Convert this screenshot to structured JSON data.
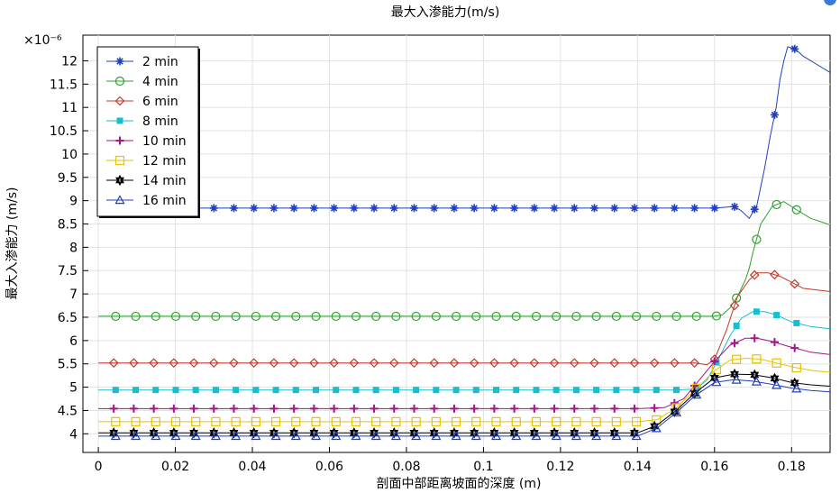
{
  "chart_data": {
    "type": "line",
    "title": "最大入渗能力(m/s)",
    "xlabel": "剖面中部距离坡面的深度 (m)",
    "ylabel": "最大入渗能力 (m/s)",
    "y_multiplier": "×10⁻⁶",
    "xlim": [
      -0.004,
      0.19
    ],
    "ylim": [
      3.6,
      12.55
    ],
    "x_ticks": [
      0,
      0.02,
      0.04,
      0.06,
      0.08,
      0.1,
      0.12,
      0.14,
      0.16,
      0.18
    ],
    "x_tick_labels": [
      "0",
      "0.02",
      "0.04",
      "0.06",
      "0.08",
      "0.1",
      "0.12",
      "0.14",
      "0.16",
      "0.18"
    ],
    "y_ticks": [
      4,
      4.5,
      5,
      5.5,
      6,
      6.5,
      7,
      7.5,
      8,
      8.5,
      9,
      9.5,
      10,
      10.5,
      11,
      11.5,
      12
    ],
    "y_tick_labels": [
      "4",
      "4.5",
      "5",
      "5.5",
      "6",
      "6.5",
      "7",
      "7.5",
      "8",
      "8.5",
      "9",
      "9.5",
      "10",
      "10.5",
      "11",
      "11.5",
      "12"
    ],
    "grid": true,
    "legend_position": "top-left",
    "series": [
      {
        "name": "2 min",
        "color": "#1f3fbf",
        "marker": "star",
        "x": [
          0,
          0.01,
          0.02,
          0.03,
          0.04,
          0.05,
          0.06,
          0.07,
          0.08,
          0.09,
          0.1,
          0.11,
          0.12,
          0.13,
          0.14,
          0.15,
          0.155,
          0.16,
          0.163,
          0.165,
          0.167,
          0.169,
          0.171,
          0.173,
          0.1745,
          0.176,
          0.177,
          0.178,
          0.179,
          0.181,
          0.183,
          0.186,
          0.19
        ],
        "y": [
          8.84,
          8.84,
          8.84,
          8.84,
          8.84,
          8.84,
          8.84,
          8.84,
          8.84,
          8.84,
          8.84,
          8.84,
          8.84,
          8.84,
          8.84,
          8.84,
          8.84,
          8.84,
          8.86,
          8.88,
          8.78,
          8.62,
          8.9,
          9.7,
          10.4,
          11.0,
          11.6,
          12.0,
          12.3,
          12.25,
          12.1,
          11.95,
          11.75
        ]
      },
      {
        "name": "4 min",
        "color": "#2ca02c",
        "marker": "circle",
        "x": [
          0,
          0.02,
          0.04,
          0.06,
          0.08,
          0.1,
          0.12,
          0.14,
          0.155,
          0.16,
          0.162,
          0.164,
          0.166,
          0.168,
          0.169,
          0.17,
          0.172,
          0.175,
          0.178,
          0.181,
          0.185,
          0.19
        ],
        "y": [
          6.52,
          6.52,
          6.52,
          6.52,
          6.52,
          6.52,
          6.52,
          6.52,
          6.52,
          6.52,
          6.55,
          6.7,
          6.95,
          7.3,
          7.55,
          7.9,
          8.5,
          8.88,
          8.98,
          8.82,
          8.62,
          8.48
        ]
      },
      {
        "name": "6 min",
        "color": "#c0392b",
        "marker": "diamond",
        "x": [
          0,
          0.02,
          0.04,
          0.06,
          0.08,
          0.1,
          0.12,
          0.14,
          0.155,
          0.158,
          0.16,
          0.163,
          0.166,
          0.169,
          0.171,
          0.174,
          0.177,
          0.18,
          0.183,
          0.19
        ],
        "y": [
          5.52,
          5.52,
          5.52,
          5.52,
          5.52,
          5.52,
          5.52,
          5.52,
          5.52,
          5.48,
          5.6,
          6.2,
          6.95,
          7.3,
          7.45,
          7.45,
          7.38,
          7.25,
          7.12,
          7.05
        ]
      },
      {
        "name": "8 min",
        "color": "#17becf",
        "marker": "square",
        "x": [
          0,
          0.02,
          0.04,
          0.06,
          0.08,
          0.1,
          0.12,
          0.14,
          0.15,
          0.155,
          0.158,
          0.161,
          0.164,
          0.167,
          0.17,
          0.173,
          0.176,
          0.18,
          0.185,
          0.19
        ],
        "y": [
          4.94,
          4.94,
          4.94,
          4.94,
          4.94,
          4.94,
          4.94,
          4.94,
          4.94,
          4.96,
          5.15,
          5.6,
          6.1,
          6.48,
          6.62,
          6.62,
          6.55,
          6.4,
          6.3,
          6.25
        ]
      },
      {
        "name": "10 min",
        "color": "#a0148c",
        "marker": "plus",
        "x": [
          0,
          0.02,
          0.04,
          0.06,
          0.08,
          0.1,
          0.12,
          0.14,
          0.147,
          0.152,
          0.156,
          0.16,
          0.164,
          0.168,
          0.171,
          0.175,
          0.179,
          0.185,
          0.19
        ],
        "y": [
          4.54,
          4.54,
          4.54,
          4.54,
          4.54,
          4.54,
          4.54,
          4.54,
          4.56,
          4.75,
          5.15,
          5.55,
          5.9,
          6.05,
          6.05,
          5.98,
          5.88,
          5.75,
          5.7
        ]
      },
      {
        "name": "12 min",
        "color": "#e6c200",
        "marker": "open-square",
        "x": [
          0,
          0.02,
          0.04,
          0.06,
          0.08,
          0.1,
          0.12,
          0.14,
          0.145,
          0.15,
          0.155,
          0.16,
          0.164,
          0.168,
          0.172,
          0.176,
          0.181,
          0.186,
          0.19
        ],
        "y": [
          4.26,
          4.26,
          4.26,
          4.26,
          4.26,
          4.26,
          4.26,
          4.26,
          4.3,
          4.55,
          4.95,
          5.35,
          5.58,
          5.62,
          5.6,
          5.52,
          5.42,
          5.35,
          5.32
        ]
      },
      {
        "name": "14 min",
        "color": "#000000",
        "marker": "hexagram",
        "x": [
          0,
          0.02,
          0.04,
          0.06,
          0.08,
          0.1,
          0.12,
          0.14,
          0.145,
          0.15,
          0.155,
          0.16,
          0.165,
          0.17,
          0.175,
          0.18,
          0.185,
          0.19
        ],
        "y": [
          4.02,
          4.02,
          4.02,
          4.02,
          4.02,
          4.02,
          4.02,
          4.02,
          4.18,
          4.5,
          4.88,
          5.2,
          5.28,
          5.27,
          5.2,
          5.1,
          5.05,
          5.02
        ]
      },
      {
        "name": "16 min",
        "color": "#1f3fbf",
        "marker": "triangle",
        "x": [
          0,
          0.02,
          0.04,
          0.06,
          0.08,
          0.1,
          0.12,
          0.14,
          0.145,
          0.15,
          0.155,
          0.16,
          0.165,
          0.17,
          0.175,
          0.18,
          0.185,
          0.19
        ],
        "y": [
          3.95,
          3.95,
          3.95,
          3.95,
          3.95,
          3.95,
          3.95,
          3.95,
          4.12,
          4.45,
          4.82,
          5.1,
          5.16,
          5.13,
          5.06,
          4.98,
          4.93,
          4.9
        ]
      }
    ]
  }
}
